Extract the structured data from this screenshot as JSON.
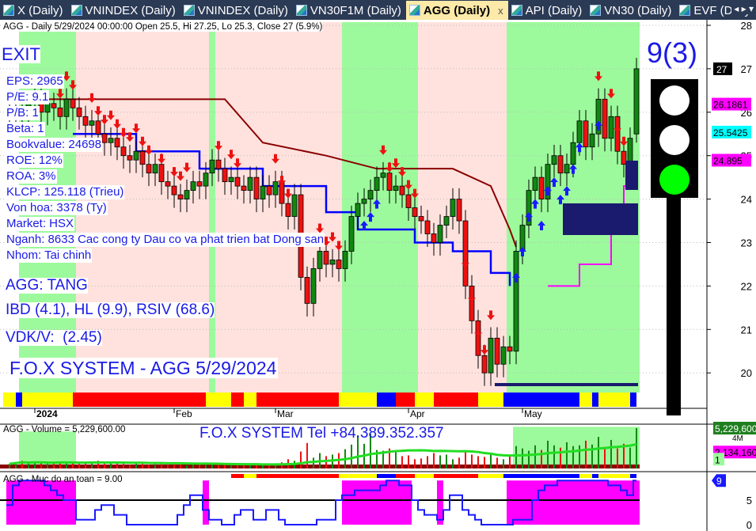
{
  "tabs": [
    {
      "label": "X (Daily)",
      "active": false
    },
    {
      "label": "VNINDEX (Daily)",
      "active": false
    },
    {
      "label": "VNINDEX (Daily)",
      "active": false
    },
    {
      "label": "VN30F1M (Daily)",
      "active": false
    },
    {
      "label": "AGG (Daily)",
      "active": true
    },
    {
      "label": "API (Daily)",
      "active": false
    },
    {
      "label": "VN30 (Daily)",
      "active": false
    },
    {
      "label": "EVF (Daily",
      "active": false
    }
  ],
  "tab_close": "x",
  "tab_nav": "◂ ▸ ▾",
  "price_title": "AGG - Daily 5/29/2024 00:00:00 Open 25.5, Hi 27.25, Lo 25.3, Close 27 (5.9%)",
  "info": {
    "exit": "EXIT",
    "lines": [
      "EPS: 2965",
      "P/E: 9.1",
      "P/B: 1",
      "Beta: 1",
      "Bookvalue: 24698",
      "ROE: 12%",
      "ROA: 3%",
      "KLCP: 125.118 (Trieu)",
      "Von hoa: 3378 (Ty)",
      "Market: HSX",
      "Nganh: 8633 Cac cong ty Dau co va phat trien bat Dong san",
      "Nhom: Tai chinh"
    ],
    "status": "AGG: TANG",
    "ibd": "IBD (4.1), HL (9.9), RSIV (68.6)",
    "vdk": "VDK/V:  (2.45)",
    "system": "F.O.X SYSTEM - AGG 5/29/2024",
    "score": "9(3)"
  },
  "traffic_light": {
    "red": "#ffffff",
    "yellow": "#ffffff",
    "green": "#00ff00"
  },
  "volume_title": "AGG - Volume = 5,229,600.00",
  "volume_banner": "F.O.X SYSTEM Tel +84.389.352.357",
  "safety_title": "AGG - Muc do an toan = 9.00",
  "chart_data": [
    {
      "type": "candlestick",
      "title": "AGG - Daily",
      "ylim": [
        19.2,
        28.1
      ],
      "yticks": [
        20,
        21,
        22,
        23,
        24,
        25,
        26,
        27,
        28
      ],
      "xtick_labels": [
        {
          "i": 3,
          "label": "2024"
        },
        {
          "i": 25,
          "label": "Feb"
        },
        {
          "i": 41,
          "label": "Mar"
        },
        {
          "i": 62,
          "label": "Apr"
        },
        {
          "i": 80,
          "label": "May"
        }
      ],
      "close": [
        26.0,
        26.1,
        25.9,
        26.2,
        26.3,
        26.0,
        26.2,
        26.1,
        25.9,
        26.3,
        26.1,
        25.9,
        25.7,
        25.8,
        25.5,
        25.3,
        25.4,
        25.2,
        25.0,
        24.9,
        25.1,
        24.8,
        24.6,
        24.8,
        24.4,
        24.3,
        24.1,
        24.0,
        24.2,
        24.4,
        24.3,
        24.6,
        24.9,
        24.7,
        24.4,
        24.5,
        24.3,
        24.2,
        24.5,
        24.0,
        24.3,
        24.1,
        24.4,
        23.9,
        23.6,
        24.1,
        22.2,
        21.6,
        22.4,
        22.8,
        22.5,
        22.6,
        22.4,
        22.8,
        23.6,
        23.9,
        24.0,
        24.2,
        24.5,
        24.6,
        24.2,
        24.3,
        24.1,
        23.8,
        23.6,
        23.5,
        23.2,
        23.0,
        23.4,
        23.6,
        24.0,
        23.5,
        22.0,
        21.2,
        20.4,
        20.0,
        20.8,
        20.2,
        20.6,
        20.5,
        22.8,
        23.4,
        24.2,
        24.5,
        24.0,
        24.8,
        25.0,
        24.6,
        24.8,
        25.3,
        25.8,
        25.2,
        25.5,
        26.3,
        25.4,
        25.9,
        25.1,
        24.8,
        25.4,
        27.0
      ],
      "last": {
        "open": 25.5,
        "high": 27.25,
        "low": 25.3,
        "close": 27,
        "change": "5.9%"
      },
      "resistance_line": [
        [
          0,
          26.3
        ],
        [
          34,
          26.3
        ],
        [
          40,
          25.3
        ],
        [
          50,
          25.0
        ],
        [
          58,
          24.7
        ],
        [
          62,
          24.7
        ],
        [
          70,
          24.7
        ],
        [
          76,
          24.3
        ],
        [
          79,
          23.3
        ],
        [
          80,
          22.9
        ]
      ],
      "trend_line": [
        [
          10,
          25.5
        ],
        [
          20,
          25.1
        ],
        [
          30,
          24.7
        ],
        [
          40,
          24.3
        ],
        [
          50,
          23.7
        ],
        [
          55,
          23.3
        ],
        [
          60,
          23.3
        ],
        [
          64,
          23.0
        ],
        [
          70,
          22.8
        ],
        [
          76,
          22.3
        ],
        [
          79,
          22.0
        ]
      ],
      "support_line": [
        [
          85,
          22.0
        ],
        [
          90,
          22.5
        ],
        [
          95,
          23.5
        ],
        [
          97,
          24.3
        ],
        [
          99,
          24.4
        ]
      ],
      "zones": [
        {
          "from": 2,
          "to": 10,
          "color": "#9cfa9c"
        },
        {
          "from": 11,
          "to": 31,
          "color": "#ffe2de"
        },
        {
          "from": 32,
          "to": 32,
          "color": "#9cfa9c"
        },
        {
          "from": 33,
          "to": 52,
          "color": "#ffe2de"
        },
        {
          "from": 53,
          "to": 64,
          "color": "#9cfa9c"
        },
        {
          "from": 65,
          "to": 78,
          "color": "#ffe2de"
        },
        {
          "from": 79,
          "to": 99,
          "color": "#9cfa9c"
        }
      ],
      "signal_bar": [
        {
          "from": 0,
          "to": 1,
          "color": "#ffff00"
        },
        {
          "from": 2,
          "to": 2,
          "color": "#0000ff"
        },
        {
          "from": 3,
          "to": 10,
          "color": "#ffff00"
        },
        {
          "from": 11,
          "to": 31,
          "color": "#ff0000"
        },
        {
          "from": 32,
          "to": 35,
          "color": "#ffff00"
        },
        {
          "from": 36,
          "to": 37,
          "color": "#ff0000"
        },
        {
          "from": 38,
          "to": 39,
          "color": "#ffff00"
        },
        {
          "from": 40,
          "to": 42,
          "color": "#ff0000"
        },
        {
          "from": 43,
          "to": 52,
          "color": "#ff0000"
        },
        {
          "from": 53,
          "to": 58,
          "color": "#ffff00"
        },
        {
          "from": 59,
          "to": 61,
          "color": "#0000ff"
        },
        {
          "from": 62,
          "to": 64,
          "color": "#ff0000"
        },
        {
          "from": 65,
          "to": 67,
          "color": "#ffff00"
        },
        {
          "from": 68,
          "to": 74,
          "color": "#ff0000"
        },
        {
          "from": 75,
          "to": 78,
          "color": "#ffff00"
        },
        {
          "from": 79,
          "to": 90,
          "color": "#0000ff"
        },
        {
          "from": 91,
          "to": 92,
          "color": "#ffff00"
        },
        {
          "from": 93,
          "to": 93,
          "color": "#0000ff"
        },
        {
          "from": 94,
          "to": 98,
          "color": "#ffff00"
        },
        {
          "from": 99,
          "to": 99,
          "color": "#0000ff"
        }
      ],
      "sell_arrows": [
        8,
        9,
        10,
        13,
        14,
        15,
        16,
        17,
        18,
        19,
        20,
        21,
        22,
        24,
        26,
        27,
        28,
        33,
        35,
        36,
        42,
        43,
        44,
        49,
        50,
        51,
        52,
        59,
        60,
        61,
        62,
        63,
        64,
        72,
        73,
        74,
        75,
        76,
        93,
        95,
        96,
        97
      ],
      "buy_arrows": [
        56,
        57,
        58,
        80,
        81,
        82,
        83,
        84,
        85,
        86,
        87,
        88,
        89,
        90,
        93,
        98
      ],
      "price_tags": [
        {
          "value": "27",
          "color": "#000000",
          "text_color": "#ffffff",
          "price": 27
        },
        {
          "value": "26.1861",
          "color": "#ff00ff",
          "text_color": "#000000",
          "price": 26.1861
        },
        {
          "value": "25.5425",
          "color": "#00ffff",
          "text_color": "#000000",
          "price": 25.5425
        },
        {
          "value": "24.895",
          "color": "#ff00ff",
          "text_color": "#000000",
          "price": 24.895
        }
      ]
    },
    {
      "type": "bar",
      "title": "AGG - Volume",
      "ylim": [
        0,
        5.5
      ],
      "ytick_labels": [
        "4M"
      ],
      "unit": "M",
      "values": [
        0.6,
        0.8,
        1.0,
        0.7,
        0.9,
        0.8,
        0.6,
        0.7,
        0.9,
        0.8,
        0.7,
        0.6,
        0.7,
        0.9,
        1.0,
        0.6,
        0.7,
        0.8,
        0.6,
        0.5,
        0.7,
        0.6,
        0.5,
        0.6,
        0.7,
        0.5,
        0.6,
        0.5,
        0.4,
        0.5,
        0.6,
        0.7,
        0.5,
        0.6,
        0.5,
        0.4,
        0.5,
        0.6,
        0.4,
        0.5,
        0.4,
        0.5,
        0.6,
        0.8,
        1.2,
        1.0,
        2.2,
        3.3,
        1.4,
        2.0,
        1.6,
        1.8,
        2.0,
        2.5,
        3.1,
        4.3,
        3.2,
        4.5,
        2.4,
        2.3,
        2.6,
        2.2,
        1.6,
        1.7,
        1.2,
        1.3,
        1.6,
        2.0,
        1.7,
        1.8,
        1.2,
        1.4,
        2.3,
        1.8,
        1.6,
        1.5,
        1.8,
        1.4,
        1.2,
        1.6,
        2.9,
        2.6,
        2.3,
        3.0,
        2.4,
        3.6,
        3.0,
        2.7,
        3.4,
        2.9,
        3.0,
        3.6,
        3.1,
        4.1,
        2.8,
        3.7,
        2.6,
        3.2,
        2.7,
        5.23
      ],
      "tags": [
        {
          "value": "5,229,600",
          "color": "#1f7f1f"
        },
        {
          "value": "2,134,160",
          "color": "#ff00ff"
        },
        {
          "value": "1",
          "color": "#9cfa9c"
        }
      ]
    },
    {
      "type": "line",
      "title": "AGG - Muc do an toan",
      "ylim": [
        0,
        10
      ],
      "yticks": [
        0,
        5
      ],
      "values": [
        4,
        8,
        9,
        9,
        9,
        9,
        8,
        7,
        6,
        5,
        5,
        1,
        1,
        1,
        3,
        4,
        4,
        2,
        2,
        0,
        0,
        0,
        0,
        0,
        0,
        0,
        0,
        2,
        4,
        6,
        6,
        3,
        1,
        1,
        0,
        0,
        2,
        3,
        3,
        1,
        1,
        3,
        3,
        1,
        0,
        0,
        0,
        0,
        0,
        1,
        1,
        1,
        5,
        6,
        6,
        7,
        7,
        7,
        7,
        8,
        9,
        9,
        8,
        8,
        5,
        3,
        2,
        2,
        1,
        3,
        6,
        6,
        3,
        2,
        1,
        0,
        0,
        0,
        0,
        0,
        1,
        1,
        1,
        5,
        7,
        8,
        8,
        9,
        9,
        9,
        9,
        9,
        9,
        9,
        9,
        8,
        8,
        7,
        6,
        9
      ],
      "last_tag": "9",
      "pink_zones": [
        {
          "from": 0,
          "to": 10
        },
        {
          "from": 31,
          "to": 31
        },
        {
          "from": 53,
          "to": 63
        },
        {
          "from": 68,
          "to": 68
        },
        {
          "from": 79,
          "to": 99
        }
      ]
    }
  ]
}
